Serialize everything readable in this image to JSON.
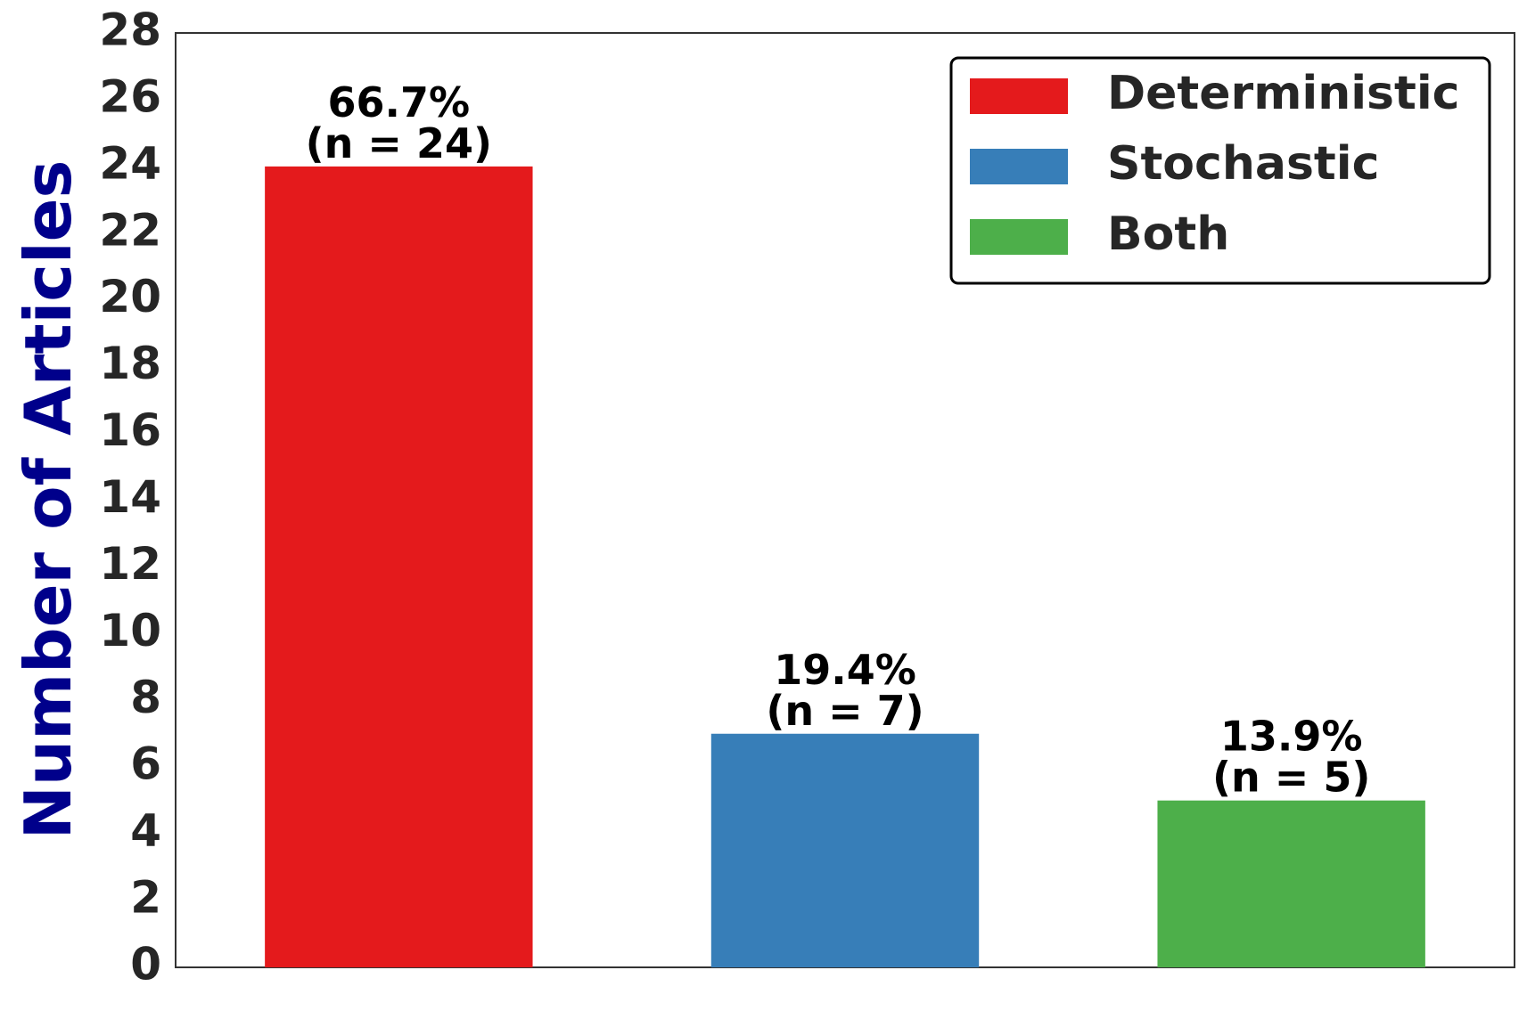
{
  "chart_data": {
    "type": "bar",
    "title": "",
    "xlabel": "",
    "ylabel": "Number of Articles",
    "ylim": [
      0,
      28
    ],
    "yticks": [
      "0",
      "2",
      "4",
      "6",
      "8",
      "10",
      "12",
      "14",
      "16",
      "18",
      "20",
      "22",
      "24",
      "26",
      "28"
    ],
    "grid": false,
    "legend_position": "top-right",
    "categories": [
      "Deterministic",
      "Stochastic",
      "Both"
    ],
    "values": [
      24,
      7,
      5
    ],
    "percent_labels": [
      "66.7%",
      "19.4%",
      "13.9%"
    ],
    "count_labels": [
      "(n = 24)",
      "(n = 7)",
      "(n = 5)"
    ],
    "colors": [
      "#e41a1c",
      "#377eb8",
      "#4daf4a"
    ],
    "ylabel_color": "#00008b"
  }
}
